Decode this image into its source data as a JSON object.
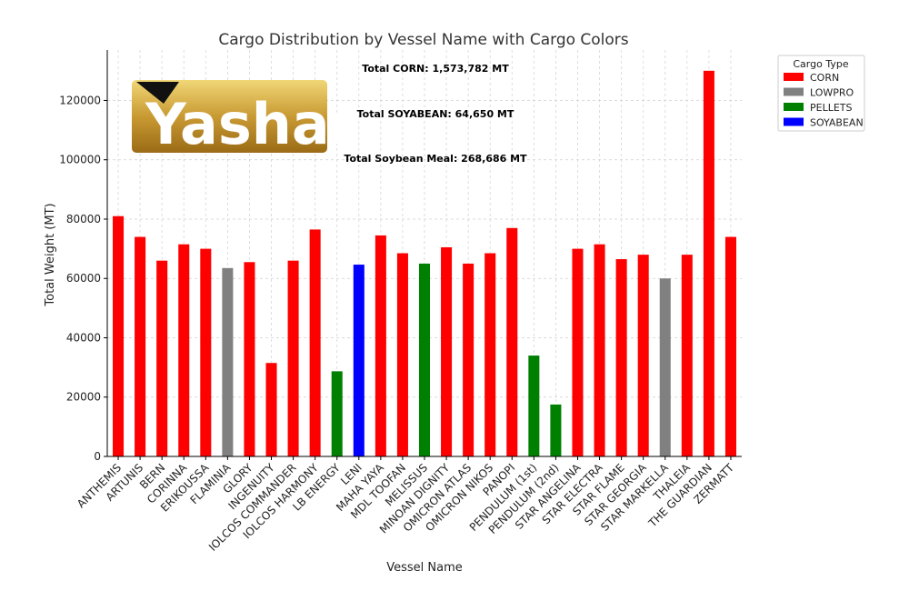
{
  "chart_data": {
    "type": "bar",
    "title": "Cargo Distribution by Vessel Name with Cargo Colors",
    "xlabel": "Vessel Name",
    "ylabel": "Total Weight (MT)",
    "ylim": [
      0,
      137000
    ],
    "yticks": [
      0,
      20000,
      40000,
      60000,
      80000,
      100000,
      120000
    ],
    "grid": true,
    "legend_title": "Cargo Type",
    "legend_position": "outside-top-right",
    "cargo_types": [
      {
        "name": "CORN",
        "color": "#ff0000"
      },
      {
        "name": "LOWPRO",
        "color": "#808080"
      },
      {
        "name": "PELLETS",
        "color": "#008000"
      },
      {
        "name": "SOYABEAN",
        "color": "#0000ff"
      }
    ],
    "bars": [
      {
        "vessel": "ANTHEMIS",
        "cargo": "CORN",
        "value": 81000
      },
      {
        "vessel": "ARTUNIS",
        "cargo": "CORN",
        "value": 74000
      },
      {
        "vessel": "BERN",
        "cargo": "CORN",
        "value": 66000
      },
      {
        "vessel": "CORINNA",
        "cargo": "CORN",
        "value": 71500
      },
      {
        "vessel": "ERIKOUSSA",
        "cargo": "CORN",
        "value": 70000
      },
      {
        "vessel": "FLAMINIA",
        "cargo": "LOWPRO",
        "value": 63500
      },
      {
        "vessel": "GLORY",
        "cargo": "CORN",
        "value": 65500
      },
      {
        "vessel": "INGENUITY",
        "cargo": "CORN",
        "value": 31500
      },
      {
        "vessel": "IOLCOS COMMANDER",
        "cargo": "CORN",
        "value": 66000
      },
      {
        "vessel": "IOLCOS HARMONY",
        "cargo": "CORN",
        "value": 76500
      },
      {
        "vessel": "LB ENERGY",
        "cargo": "PELLETS",
        "value": 28700
      },
      {
        "vessel": "LENI",
        "cargo": "SOYABEAN",
        "value": 64650
      },
      {
        "vessel": "MAHA YAYA",
        "cargo": "CORN",
        "value": 74500
      },
      {
        "vessel": "MDL TOOFAN",
        "cargo": "CORN",
        "value": 68500
      },
      {
        "vessel": "MELISSUS",
        "cargo": "PELLETS",
        "value": 65000
      },
      {
        "vessel": "MINOAN DIGNITY",
        "cargo": "CORN",
        "value": 70500
      },
      {
        "vessel": "OMICRON ATLAS",
        "cargo": "CORN",
        "value": 65000
      },
      {
        "vessel": "OMICRON NIKOS",
        "cargo": "CORN",
        "value": 68500
      },
      {
        "vessel": "PANOPI",
        "cargo": "CORN",
        "value": 77000
      },
      {
        "vessel": "PENDULUM (1st)",
        "cargo": "PELLETS",
        "value": 34000
      },
      {
        "vessel": "PENDULUM (2nd)",
        "cargo": "PELLETS",
        "value": 17500
      },
      {
        "vessel": "STAR ANGELINA",
        "cargo": "CORN",
        "value": 70000
      },
      {
        "vessel": "STAR ELECTRA",
        "cargo": "CORN",
        "value": 71500
      },
      {
        "vessel": "STAR FLAME",
        "cargo": "CORN",
        "value": 66500
      },
      {
        "vessel": "STAR GEORGIA",
        "cargo": "CORN",
        "value": 68000
      },
      {
        "vessel": "STAR MARKELLA",
        "cargo": "LOWPRO",
        "value": 60000
      },
      {
        "vessel": "THALEIA",
        "cargo": "CORN",
        "value": 68000
      },
      {
        "vessel": "THE GUARDIAN",
        "cargo": "CORN",
        "value": 130000
      },
      {
        "vessel": "ZERMATT",
        "cargo": "CORN",
        "value": 74000
      }
    ],
    "annotations": [
      "Total CORN: 1,573,782 MT",
      "Total SOYABEAN: 64,650 MT",
      "Total Soybean Meal: 268,686 MT"
    ]
  },
  "logo": {
    "text": "ashar",
    "colors": {
      "gold_light": "#e9c85a",
      "gold_dark": "#a9781c",
      "mark": "#111111"
    }
  }
}
